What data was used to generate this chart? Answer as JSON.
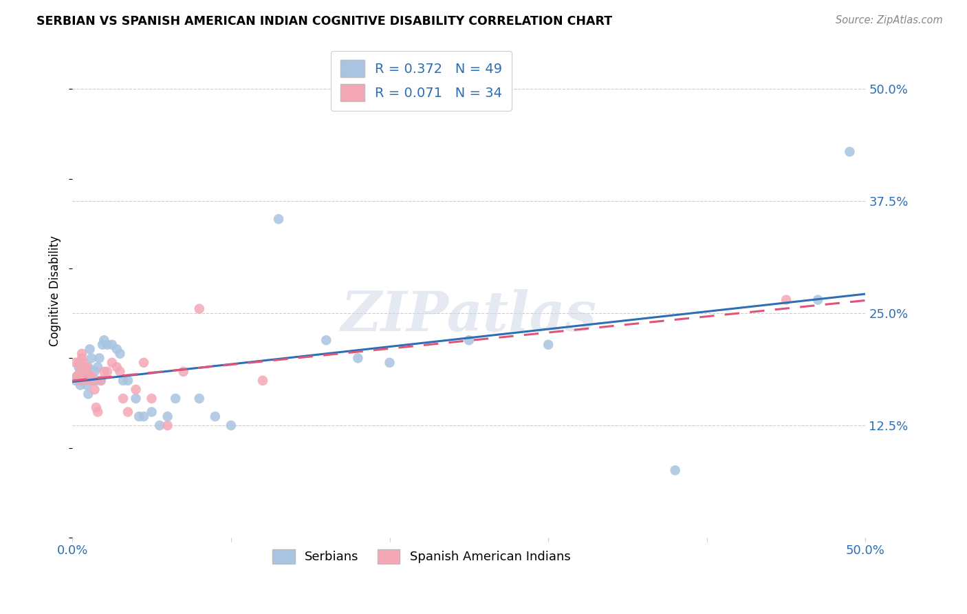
{
  "title": "SERBIAN VS SPANISH AMERICAN INDIAN COGNITIVE DISABILITY CORRELATION CHART",
  "source": "Source: ZipAtlas.com",
  "ylabel": "Cognitive Disability",
  "ytick_labels": [
    "12.5%",
    "25.0%",
    "37.5%",
    "50.0%"
  ],
  "ytick_positions": [
    0.125,
    0.25,
    0.375,
    0.5
  ],
  "xlim": [
    0.0,
    0.5
  ],
  "ylim": [
    0.0,
    0.55
  ],
  "serbian_color": "#a8c4e0",
  "spanish_color": "#f4a7b5",
  "serbian_line_color": "#2d6eb5",
  "spanish_line_color": "#e05575",
  "background_color": "#ffffff",
  "watermark": "ZIPatlas",
  "serbian_x": [
    0.002,
    0.003,
    0.004,
    0.005,
    0.005,
    0.006,
    0.006,
    0.007,
    0.007,
    0.008,
    0.009,
    0.009,
    0.01,
    0.01,
    0.011,
    0.012,
    0.013,
    0.014,
    0.015,
    0.016,
    0.017,
    0.018,
    0.019,
    0.02,
    0.022,
    0.025,
    0.028,
    0.03,
    0.032,
    0.035,
    0.04,
    0.042,
    0.045,
    0.05,
    0.055,
    0.06,
    0.065,
    0.08,
    0.09,
    0.1,
    0.13,
    0.16,
    0.18,
    0.2,
    0.25,
    0.3,
    0.38,
    0.47,
    0.49
  ],
  "serbian_y": [
    0.175,
    0.18,
    0.19,
    0.17,
    0.185,
    0.19,
    0.175,
    0.18,
    0.185,
    0.175,
    0.17,
    0.18,
    0.16,
    0.19,
    0.21,
    0.2,
    0.175,
    0.185,
    0.175,
    0.19,
    0.2,
    0.175,
    0.215,
    0.22,
    0.215,
    0.215,
    0.21,
    0.205,
    0.175,
    0.175,
    0.155,
    0.135,
    0.135,
    0.14,
    0.125,
    0.135,
    0.155,
    0.155,
    0.135,
    0.125,
    0.355,
    0.22,
    0.2,
    0.195,
    0.22,
    0.215,
    0.075,
    0.265,
    0.43
  ],
  "spanish_x": [
    0.002,
    0.003,
    0.004,
    0.005,
    0.005,
    0.006,
    0.006,
    0.007,
    0.008,
    0.008,
    0.009,
    0.01,
    0.011,
    0.012,
    0.013,
    0.014,
    0.015,
    0.016,
    0.018,
    0.02,
    0.022,
    0.025,
    0.028,
    0.03,
    0.032,
    0.035,
    0.04,
    0.045,
    0.05,
    0.06,
    0.07,
    0.08,
    0.12,
    0.45
  ],
  "spanish_y": [
    0.195,
    0.18,
    0.195,
    0.185,
    0.175,
    0.2,
    0.205,
    0.195,
    0.18,
    0.185,
    0.19,
    0.175,
    0.18,
    0.18,
    0.175,
    0.165,
    0.145,
    0.14,
    0.175,
    0.185,
    0.185,
    0.195,
    0.19,
    0.185,
    0.155,
    0.14,
    0.165,
    0.195,
    0.155,
    0.125,
    0.185,
    0.255,
    0.175,
    0.265
  ],
  "legend_r1_color": "#2d6eb5",
  "legend_r2_color": "#e05575",
  "legend_n_color": "#2d6eb5"
}
